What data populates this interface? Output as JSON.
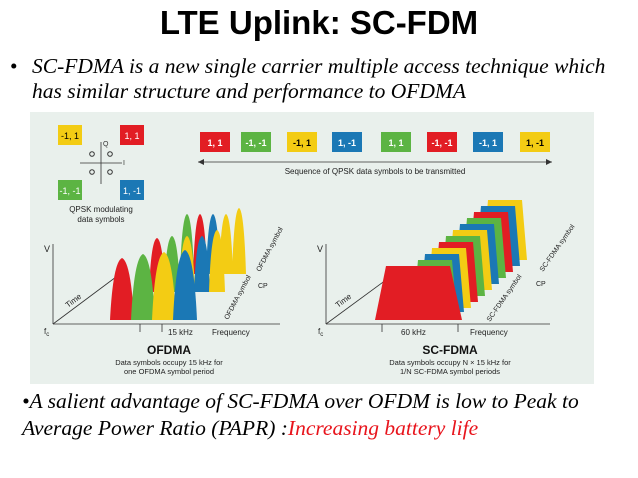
{
  "slide": {
    "title": "LTE Uplink: SC-FDM",
    "bullet1": "SC-FDMA is a new single carrier multiple access technique which has similar structure and performance to OFDMA",
    "bullet1_marker": "•",
    "bullet2_marker": "•",
    "bullet2_text": "A salient advantage of SC-FDMA over OFDM is low to Peak to Average Power Ratio (PAPR) :",
    "bullet2_highlight": "Increasing battery life"
  },
  "figure": {
    "constellation": {
      "labels": [
        "-1, 1",
        "1, 1",
        "-1, -1",
        "1, -1"
      ],
      "axis_q": "Q",
      "axis_i": "I",
      "caption_line1": "QPSK modulating",
      "caption_line2": "data symbols"
    },
    "sequence": {
      "symbols": [
        "1, 1",
        "-1, -1",
        "-1, 1",
        "1, -1",
        "1, 1",
        "-1, -1",
        "-1, 1",
        "1, -1"
      ],
      "caption": "Sequence of QPSK data symbols to be transmitted"
    },
    "ofdma": {
      "v_label": "V",
      "time_label": "Time",
      "fc_label": "f",
      "fc_sub": "c",
      "bw_label": "15 kHz",
      "freq_label": "Frequency",
      "cp_label": "CP",
      "symbol_label_top": "OFDMA symbol",
      "symbol_label_bottom": "OFDMA symbol",
      "name": "OFDMA",
      "caption_line1": "Data symbols occupy 15 kHz for",
      "caption_line2": "one OFDMA symbol period"
    },
    "scfdma": {
      "v_label": "V",
      "time_label": "Time",
      "fc_label": "f",
      "fc_sub": "c",
      "bw_label": "60 kHz",
      "freq_label": "Frequency",
      "cp_label": "CP",
      "symbol_label_top": "SC-FDMA symbol",
      "symbol_label_bottom": "SC-FDMA symbol",
      "name": "SC-FDMA",
      "caption_line1": "Data symbols occupy N × 15 kHz for",
      "caption_line2": "1/N SC-FDMA symbol periods"
    },
    "colors": {
      "yellow": "#f3cc14",
      "red": "#e21d24",
      "green": "#5cb443",
      "blue": "#1b78b5",
      "background": "#e9f0ec"
    }
  }
}
